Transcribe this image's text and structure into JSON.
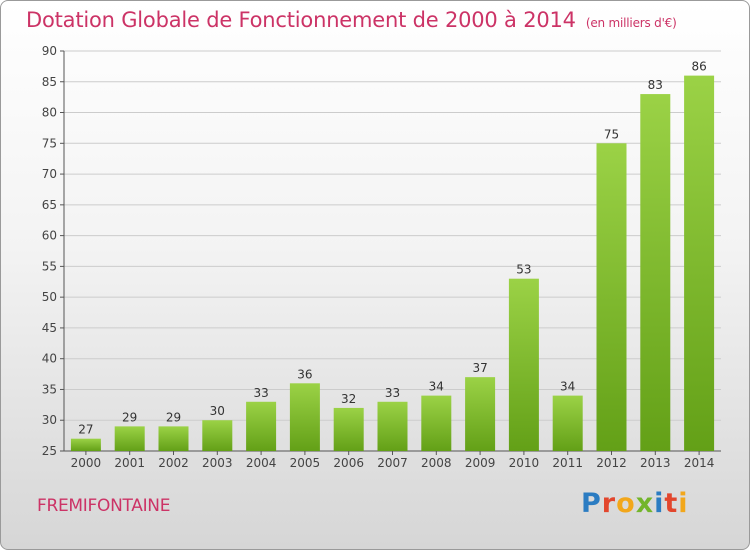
{
  "header": {
    "title": "Dotation Globale de Fonctionnement de 2000 à 2014",
    "subtitle": "(en milliers d'€)"
  },
  "footer": {
    "commune": "FREMIFONTAINE",
    "logo_text": "Proxiti"
  },
  "colors": {
    "title": "#cc3366",
    "bar_top": "#9bd246",
    "bar_bottom": "#63a017",
    "axis": "#555555",
    "grid": "#cccccc"
  },
  "chart_data": {
    "type": "bar",
    "categories": [
      "2000",
      "2001",
      "2002",
      "2003",
      "2004",
      "2005",
      "2006",
      "2007",
      "2008",
      "2009",
      "2010",
      "2011",
      "2012",
      "2013",
      "2014"
    ],
    "values": [
      27,
      29,
      29,
      30,
      33,
      36,
      32,
      33,
      34,
      37,
      53,
      34,
      75,
      83,
      86
    ],
    "title": "Dotation Globale de Fonctionnement de 2000 à 2014",
    "xlabel": "",
    "ylabel": "",
    "ylim": [
      25,
      90
    ],
    "yticks": [
      25,
      30,
      35,
      40,
      45,
      50,
      55,
      60,
      65,
      70,
      75,
      80,
      85,
      90
    ],
    "grid": true,
    "data_labels": true,
    "legend": "none"
  }
}
